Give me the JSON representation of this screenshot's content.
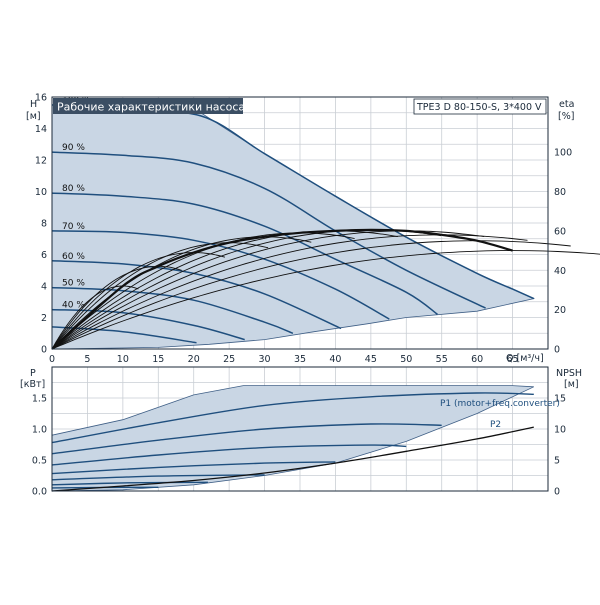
{
  "header": {
    "title": "Рабочие характеристики насоса",
    "model": "TPE3 D 80-150-S, 3*400 V"
  },
  "colors": {
    "area_fill": "#c9d6e4",
    "area_edge": "#3f5f86",
    "curve_blue": "#1f4f7e",
    "curve_black": "#111111",
    "title_bg": "#3b4e63",
    "title_fg": "#ffffff",
    "grid": "#c9ced4"
  },
  "chart_data": [
    {
      "type": "line",
      "id": "performance",
      "ylabel_unit_left": {
        "name": "H",
        "unit": "[м]"
      },
      "ylabel_unit_right": {
        "name": "eta",
        "unit": "[%]"
      },
      "xlabel": "Q [м³/ч]",
      "xlim": [
        0,
        70
      ],
      "ylim": [
        0,
        16
      ],
      "eta_lim": [
        0,
        128
      ],
      "x_ticks": [
        0,
        5,
        10,
        15,
        20,
        25,
        30,
        35,
        40,
        45,
        50,
        55,
        60,
        65
      ],
      "y_ticks": [
        0,
        2,
        4,
        6,
        8,
        10,
        12,
        14,
        16
      ],
      "y_tick_labels": [
        "0",
        "2",
        "4",
        "6",
        "8",
        "10",
        "12",
        "14",
        "16"
      ],
      "eta_ticks": [
        0,
        20,
        40,
        60,
        80,
        100
      ],
      "area_outline": [
        [
          0,
          15.5
        ],
        [
          21,
          15
        ],
        [
          30,
          12.4
        ],
        [
          40,
          9.7
        ],
        [
          50,
          7.1
        ],
        [
          55,
          5.9
        ],
        [
          60,
          4.8
        ],
        [
          65,
          3.8
        ],
        [
          68,
          3.2
        ],
        [
          60,
          2.4
        ],
        [
          50,
          2.0
        ],
        [
          44.5,
          1.6
        ],
        [
          37,
          1.1
        ],
        [
          30,
          0.6
        ],
        [
          22.2,
          0.3
        ],
        [
          15,
          0.1
        ],
        [
          0,
          0
        ]
      ],
      "speed_curves": [
        {
          "label": "100 %",
          "points": [
            [
              0,
              15.5
            ],
            [
              10,
              15.1
            ],
            [
              21,
              14.8
            ],
            [
              30,
              12.4
            ],
            [
              40,
              9.7
            ],
            [
              50,
              7.1
            ],
            [
              60,
              4.8
            ],
            [
              65,
              3.8
            ],
            [
              68,
              3.2
            ]
          ]
        },
        {
          "label": "90 %",
          "points": [
            [
              0,
              12.5
            ],
            [
              10,
              12.3
            ],
            [
              20,
              11.8
            ],
            [
              30,
              10.2
            ],
            [
              40,
              7.5
            ],
            [
              50,
              5.0
            ],
            [
              61.2,
              2.6
            ]
          ]
        },
        {
          "label": "80 %",
          "points": [
            [
              0,
              9.9
            ],
            [
              10,
              9.7
            ],
            [
              20,
              9.2
            ],
            [
              30,
              7.8
            ],
            [
              40,
              5.7
            ],
            [
              50,
              3.6
            ],
            [
              54.4,
              2.2
            ]
          ]
        },
        {
          "label": "70 %",
          "points": [
            [
              0,
              7.5
            ],
            [
              10,
              7.4
            ],
            [
              20,
              6.9
            ],
            [
              30,
              5.7
            ],
            [
              40,
              3.8
            ],
            [
              47.6,
              1.9
            ]
          ]
        },
        {
          "label": "60 %",
          "points": [
            [
              0,
              5.6
            ],
            [
              10,
              5.4
            ],
            [
              20,
              4.8
            ],
            [
              30,
              3.5
            ],
            [
              40.8,
              1.3
            ]
          ]
        },
        {
          "label": "50 %",
          "points": [
            [
              0,
              3.9
            ],
            [
              10,
              3.7
            ],
            [
              20,
              3.1
            ],
            [
              30,
              1.7
            ],
            [
              34,
              1.0
            ]
          ]
        },
        {
          "label": "40 %",
          "points": [
            [
              0,
              2.5
            ],
            [
              10,
              2.3
            ],
            [
              20,
              1.5
            ],
            [
              27.2,
              0.6
            ]
          ]
        },
        {
          "label": "",
          "points": [
            [
              0,
              1.4
            ],
            [
              10,
              1.1
            ],
            [
              20.4,
              0.4
            ]
          ]
        }
      ],
      "eta_peaks": [
        [
          10,
          32
        ],
        [
          15,
          42
        ],
        [
          20,
          49
        ],
        [
          25,
          54
        ],
        [
          30,
          57
        ],
        [
          35,
          59
        ],
        [
          40,
          60
        ],
        [
          45,
          60.5
        ],
        [
          50,
          60
        ],
        [
          55,
          58
        ],
        [
          60,
          55
        ],
        [
          65,
          50
        ]
      ]
    },
    {
      "type": "line",
      "id": "power_npsh",
      "ylabel_unit_left": {
        "name": "P",
        "unit": "[кВт]"
      },
      "ylabel_unit_right": {
        "name": "NPSH",
        "unit": "[м]"
      },
      "xlim": [
        0,
        70
      ],
      "ylim": [
        0,
        2.0
      ],
      "npsh_lim": [
        0,
        20
      ],
      "y_ticks": [
        0,
        0.5,
        1.0,
        1.5
      ],
      "y_tick_labels": [
        "0.0",
        "0.5",
        "1.0",
        "1.5"
      ],
      "npsh_ticks": [
        0,
        5,
        10,
        15
      ],
      "series_labels": {
        "p1": "P1 (motor+freq.converter)",
        "p2": "P2"
      },
      "power_area": [
        [
          0,
          0.9
        ],
        [
          10,
          1.15
        ],
        [
          20,
          1.55
        ],
        [
          27,
          1.7
        ],
        [
          65,
          1.7
        ],
        [
          68,
          1.68
        ],
        [
          60,
          1.25
        ],
        [
          50,
          0.8
        ],
        [
          40,
          0.45
        ],
        [
          30,
          0.25
        ],
        [
          20,
          0.1
        ],
        [
          10,
          0.02
        ],
        [
          0,
          0
        ]
      ],
      "power_curves": [
        [
          [
            0,
            0.78
          ],
          [
            15,
            1.1
          ],
          [
            30,
            1.38
          ],
          [
            45,
            1.52
          ],
          [
            60,
            1.58
          ],
          [
            68,
            1.56
          ]
        ],
        [
          [
            0,
            0.6
          ],
          [
            15,
            0.82
          ],
          [
            30,
            1.0
          ],
          [
            45,
            1.08
          ],
          [
            55,
            1.06
          ]
        ],
        [
          [
            0,
            0.42
          ],
          [
            15,
            0.58
          ],
          [
            30,
            0.7
          ],
          [
            45,
            0.74
          ],
          [
            50,
            0.72
          ]
        ],
        [
          [
            0,
            0.28
          ],
          [
            15,
            0.38
          ],
          [
            30,
            0.45
          ],
          [
            40,
            0.47
          ]
        ],
        [
          [
            0,
            0.18
          ],
          [
            15,
            0.24
          ],
          [
            30,
            0.26
          ]
        ],
        [
          [
            0,
            0.1
          ],
          [
            10,
            0.13
          ],
          [
            22,
            0.14
          ]
        ],
        [
          [
            0,
            0.05
          ],
          [
            10,
            0.06
          ],
          [
            15,
            0.06
          ]
        ]
      ],
      "npsh_curve": [
        [
          0,
          0
        ],
        [
          10,
          0.8
        ],
        [
          20,
          1.7
        ],
        [
          30,
          2.9
        ],
        [
          40,
          4.5
        ],
        [
          50,
          6.4
        ],
        [
          60,
          8.4
        ],
        [
          68,
          10.3
        ]
      ]
    }
  ]
}
